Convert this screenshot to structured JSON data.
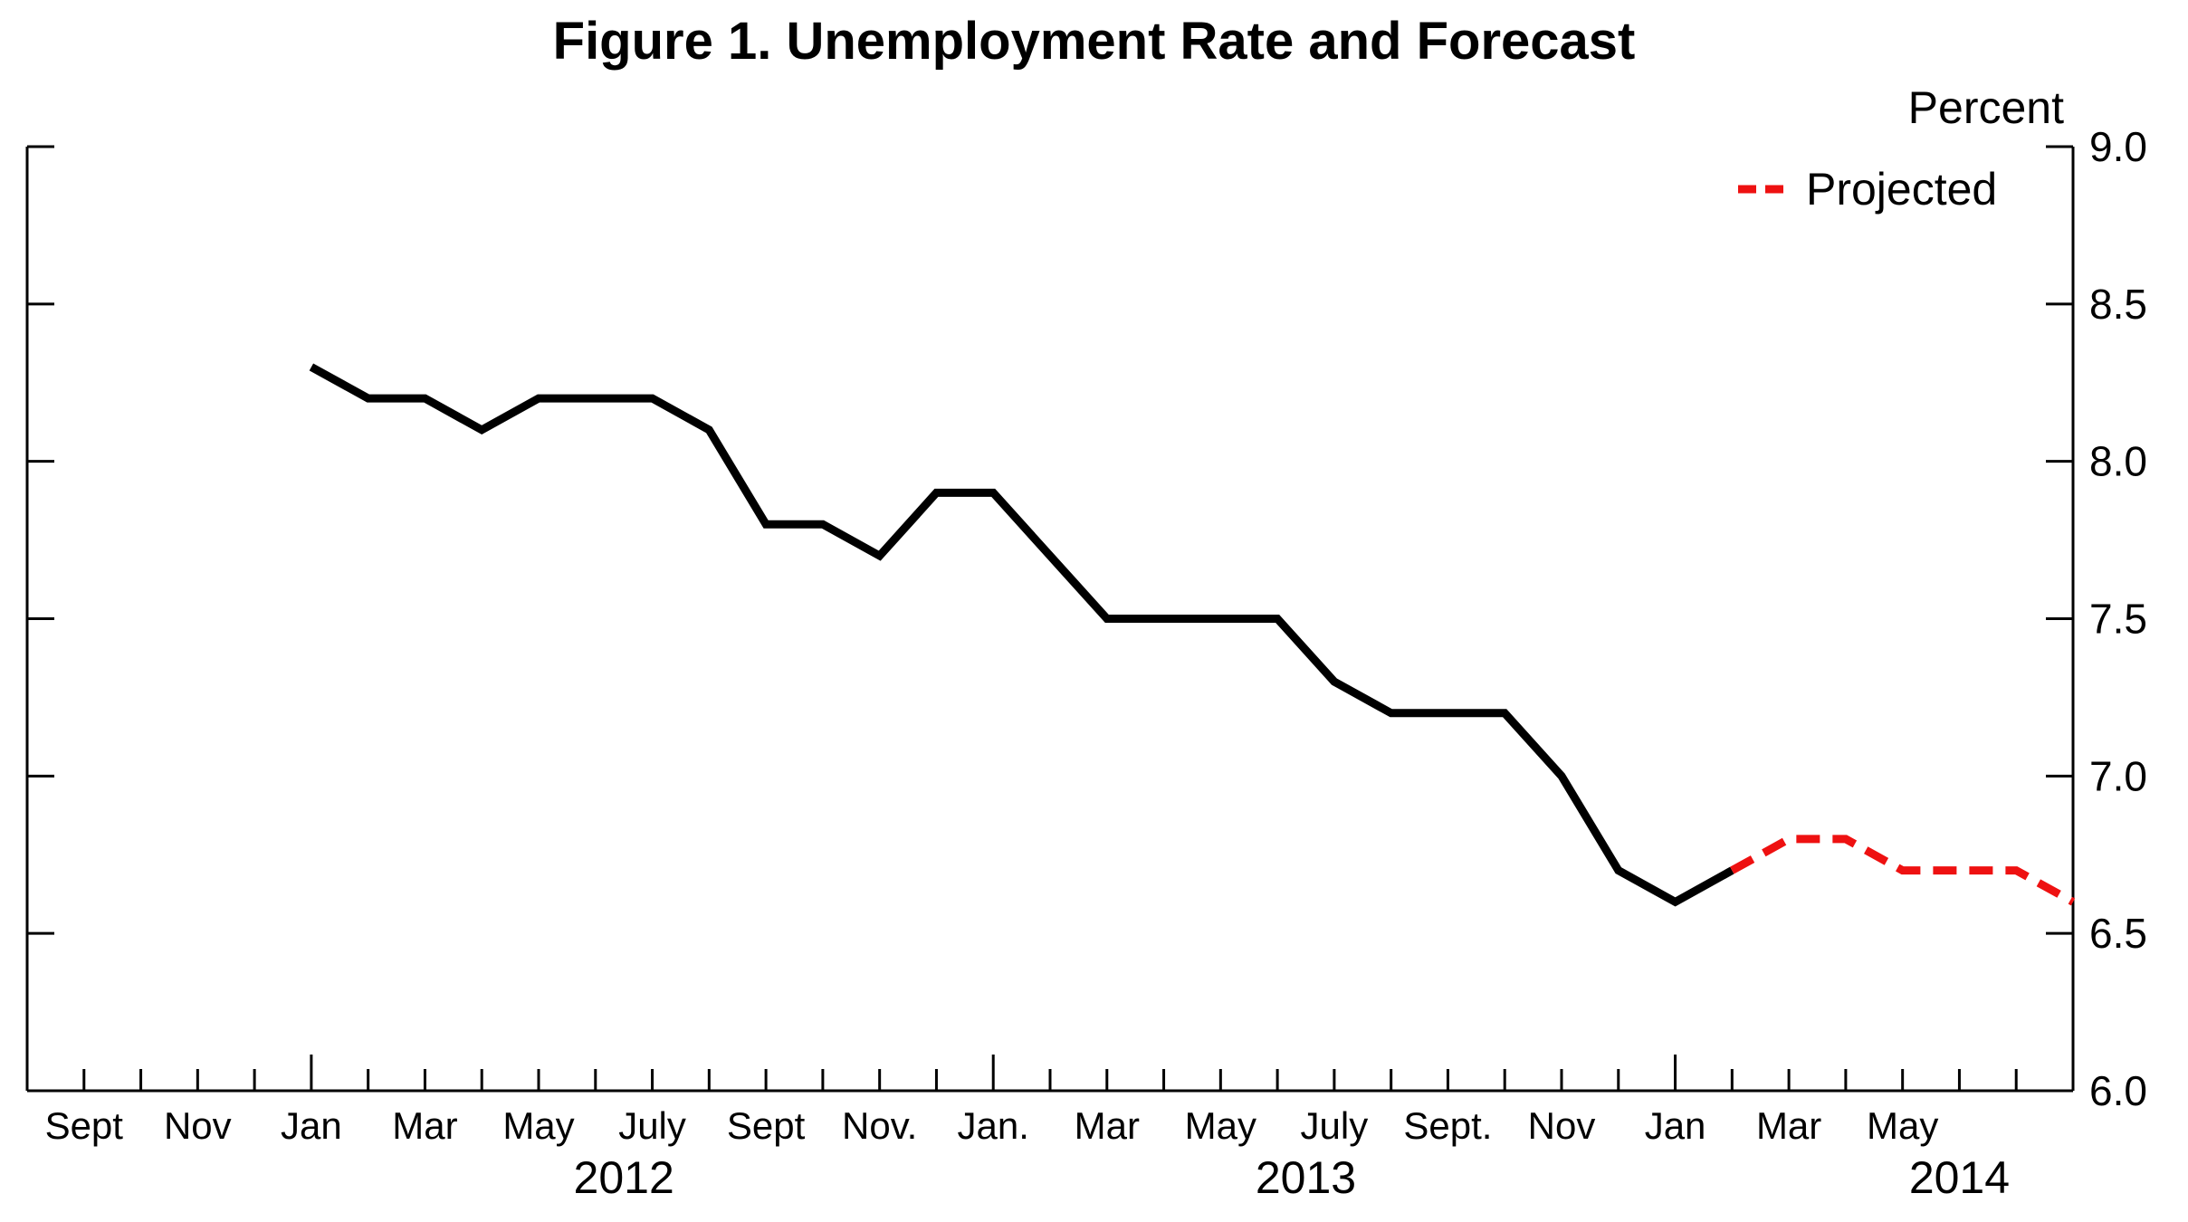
{
  "chart_data": {
    "type": "line",
    "title": "Figure 1. Unemployment Rate and Forecast",
    "ylabel": "Percent",
    "ylim": [
      6.0,
      9.0
    ],
    "yticks": [
      "6.0",
      "6.5",
      "7.0",
      "7.5",
      "8.0",
      "8.5",
      "9.0"
    ],
    "y_axis_side": "right",
    "grid": false,
    "legend_position": "top-right",
    "x_month_labels": [
      "Sept",
      "Nov",
      "Jan",
      "Mar",
      "May",
      "July",
      "Sept",
      "Nov.",
      "Jan.",
      "Mar",
      "May",
      "July",
      "Sept.",
      "Nov",
      "Jan",
      "Mar",
      "May"
    ],
    "x_year_labels": [
      "2012",
      "2013",
      "2014"
    ],
    "colors": {
      "actual": "#000000",
      "projected": "#ee1111"
    },
    "series": [
      {
        "values": [
          {
            "x": "2012-01",
            "y": 8.3
          },
          {
            "x": "2012-02",
            "y": 8.2
          },
          {
            "x": "2012-03",
            "y": 8.2
          },
          {
            "x": "2012-04",
            "y": 8.1
          },
          {
            "x": "2012-05",
            "y": 8.2
          },
          {
            "x": "2012-06",
            "y": 8.2
          },
          {
            "x": "2012-07",
            "y": 8.2
          },
          {
            "x": "2012-08",
            "y": 8.1
          },
          {
            "x": "2012-09",
            "y": 7.8
          },
          {
            "x": "2012-10",
            "y": 7.8
          },
          {
            "x": "2012-11",
            "y": 7.7
          },
          {
            "x": "2012-12",
            "y": 7.9
          },
          {
            "x": "2013-01",
            "y": 7.9
          },
          {
            "x": "2013-02",
            "y": 7.7
          },
          {
            "x": "2013-03",
            "y": 7.5
          },
          {
            "x": "2013-04",
            "y": 7.5
          },
          {
            "x": "2013-05",
            "y": 7.5
          },
          {
            "x": "2013-06",
            "y": 7.5
          },
          {
            "x": "2013-07",
            "y": 7.3
          },
          {
            "x": "2013-08",
            "y": 7.2
          },
          {
            "x": "2013-09",
            "y": 7.2
          },
          {
            "x": "2013-10",
            "y": 7.2
          },
          {
            "x": "2013-11",
            "y": 7.0
          },
          {
            "x": "2013-12",
            "y": 6.7
          },
          {
            "x": "2014-01",
            "y": 6.6
          },
          {
            "x": "2014-02",
            "y": 6.7
          }
        ]
      },
      {
        "name": "Projected",
        "values": [
          {
            "x": "2014-02",
            "y": 6.7
          },
          {
            "x": "2014-03",
            "y": 6.8
          },
          {
            "x": "2014-04",
            "y": 6.8
          },
          {
            "x": "2014-05",
            "y": 6.7
          },
          {
            "x": "2014-06",
            "y": 6.7
          },
          {
            "x": "2014-07",
            "y": 6.7
          },
          {
            "x": "2014-08",
            "y": 6.6
          }
        ]
      }
    ]
  }
}
